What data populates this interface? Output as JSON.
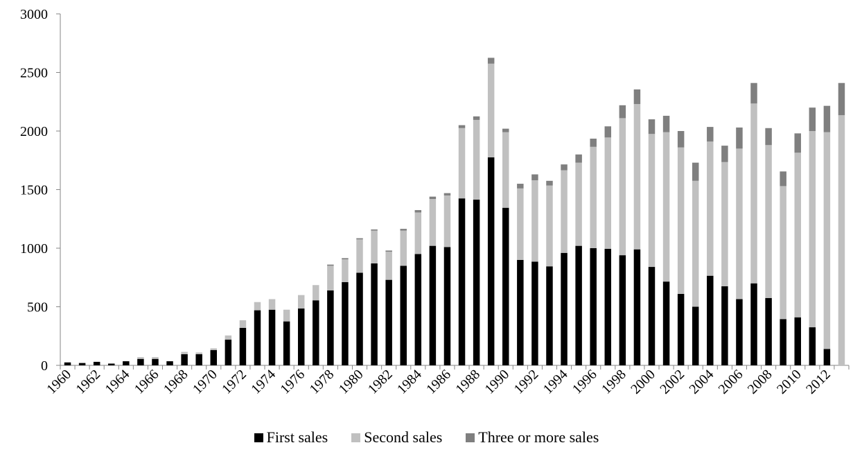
{
  "chart_data": {
    "type": "bar",
    "stacked": true,
    "title": "",
    "xlabel": "",
    "ylabel": "",
    "ylim": [
      0,
      3000
    ],
    "yticks": [
      0,
      500,
      1000,
      1500,
      2000,
      2500,
      3000
    ],
    "grid": false,
    "legend_position": "bottom",
    "categories": [
      "1960",
      "1961",
      "1962",
      "1963",
      "1964",
      "1965",
      "1966",
      "1967",
      "1968",
      "1969",
      "1970",
      "1971",
      "1972",
      "1973",
      "1974",
      "1975",
      "1976",
      "1977",
      "1978",
      "1979",
      "1980",
      "1981",
      "1982",
      "1983",
      "1984",
      "1985",
      "1986",
      "1987",
      "1988",
      "1989",
      "1990",
      "1991",
      "1992",
      "1993",
      "1994",
      "1995",
      "1996",
      "1997",
      "1998",
      "1999",
      "2000",
      "2001",
      "2002",
      "2003",
      "2004",
      "2005",
      "2006",
      "2007",
      "2008",
      "2009",
      "2010",
      "2011",
      "2012",
      "2013"
    ],
    "tick_labels": [
      "1960",
      "1962",
      "1964",
      "1966",
      "1968",
      "1970",
      "1972",
      "1974",
      "1976",
      "1978",
      "1980",
      "1982",
      "1984",
      "1986",
      "1988",
      "1990",
      "1992",
      "1994",
      "1996",
      "1998",
      "2000",
      "2002",
      "2004",
      "2006",
      "2008",
      "2010",
      "2012"
    ],
    "series": [
      {
        "name": "First sales",
        "color": "#000000",
        "values": [
          25,
          20,
          30,
          15,
          35,
          55,
          55,
          35,
          95,
          95,
          130,
          220,
          320,
          470,
          475,
          375,
          485,
          555,
          640,
          710,
          790,
          870,
          730,
          850,
          950,
          1020,
          1010,
          1425,
          1415,
          1775,
          1345,
          900,
          885,
          845,
          960,
          1020,
          1000,
          995,
          940,
          990,
          840,
          715,
          610,
          500,
          765,
          675,
          565,
          700,
          575,
          395,
          410,
          325,
          140,
          0
        ]
      },
      {
        "name": "Second sales",
        "color": "#c0c0c0",
        "values": [
          0,
          0,
          0,
          0,
          0,
          15,
          15,
          0,
          20,
          15,
          15,
          35,
          65,
          70,
          90,
          100,
          115,
          130,
          210,
          195,
          285,
          280,
          240,
          300,
          355,
          400,
          440,
          600,
          680,
          800,
          645,
          610,
          695,
          690,
          705,
          710,
          865,
          950,
          1170,
          1240,
          1135,
          1275,
          1250,
          1075,
          1145,
          1060,
          1285,
          1535,
          1305,
          1135,
          1405,
          1675,
          1850,
          2135
        ]
      },
      {
        "name": "Three or more sales",
        "color": "#7f7f7f",
        "values": [
          0,
          0,
          0,
          0,
          0,
          0,
          0,
          0,
          0,
          0,
          0,
          0,
          0,
          0,
          0,
          0,
          0,
          0,
          10,
          10,
          10,
          10,
          10,
          15,
          20,
          20,
          20,
          25,
          30,
          50,
          30,
          40,
          50,
          40,
          50,
          70,
          70,
          95,
          110,
          125,
          125,
          140,
          140,
          155,
          125,
          140,
          180,
          175,
          145,
          125,
          165,
          200,
          225,
          275
        ]
      }
    ]
  }
}
